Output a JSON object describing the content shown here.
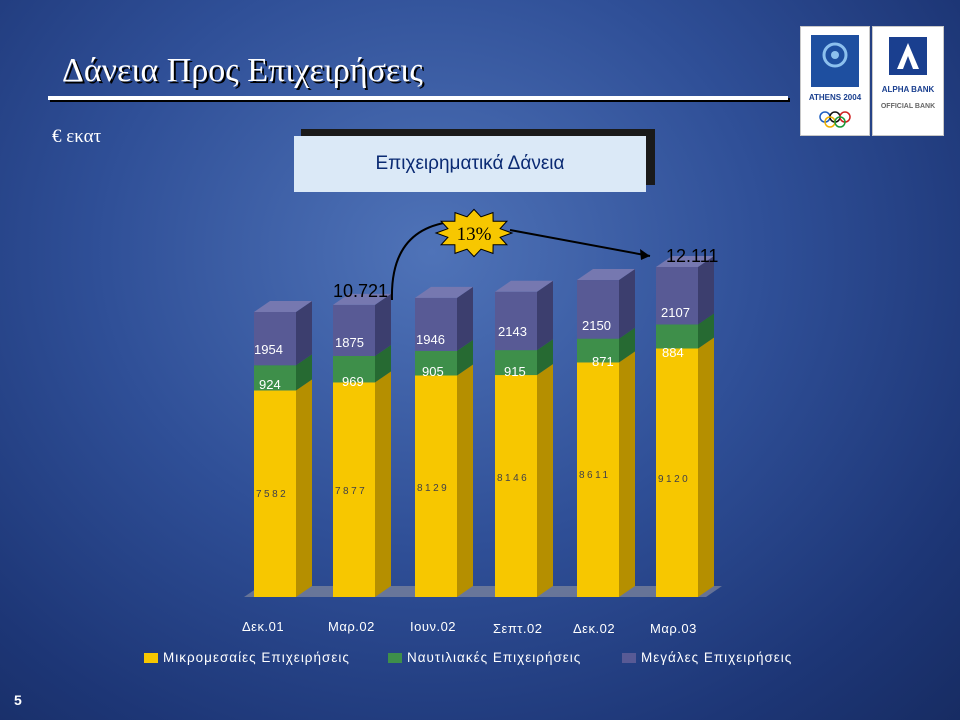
{
  "slide": {
    "title": "Δάνεια Προς Επιχειρήσεις",
    "unit_label": "€ εκατ",
    "chart_title": "Επιχειρηματικά Δάνεια",
    "page_number": "5",
    "logos": {
      "athens": "ATHENS 2004",
      "alpha_bank": "ALPHA BANK",
      "official_bank": "OFFICIAL BANK"
    }
  },
  "colors": {
    "small_medium": "#f7c700",
    "shipping": "#3e8f4a",
    "large": "#585a95",
    "growth_badge": "#f7c700"
  },
  "chart_data": {
    "type": "bar",
    "stacked": true,
    "categories": [
      "Δεκ.01",
      "Μαρ.02",
      "Ιουν.02",
      "Σεπτ.02",
      "Δεκ.02",
      "Μαρ.03"
    ],
    "series": [
      {
        "name": "Μικρομεσαίες Επιχειρήσεις",
        "values": [
          7582,
          7877,
          8129,
          8146,
          8611,
          9120
        ]
      },
      {
        "name": "Ναυτιλιακές Επιχειρήσεις",
        "values": [
          924,
          969,
          905,
          915,
          871,
          884
        ]
      },
      {
        "name": "Μεγάλες Επιχειρήσεις",
        "values": [
          1954,
          1875,
          1946,
          2143,
          2150,
          2107
        ]
      }
    ],
    "series_labels": [
      [
        "7582",
        "7877",
        "8129",
        "8146",
        "8611",
        "9120"
      ],
      [
        "924",
        "969",
        "905",
        "915",
        "871",
        "884"
      ],
      [
        "1954",
        "1875",
        "1946",
        "2143",
        "2150",
        "2107"
      ]
    ],
    "annotations": [
      {
        "text": "10.721",
        "category": "Μαρ.02"
      },
      {
        "text": "12.111",
        "category": "Μαρ.03"
      },
      {
        "text": "13%",
        "type": "growth-badge"
      }
    ],
    "legend": [
      "Μικρομεσαίες Επιχειρήσεις",
      "Ναυτιλιακές Επιχειρήσεις",
      "Μεγάλες Επιχειρήσεις"
    ],
    "legend_position": "bottom",
    "grid": false,
    "ylim": [
      0,
      12111
    ]
  }
}
